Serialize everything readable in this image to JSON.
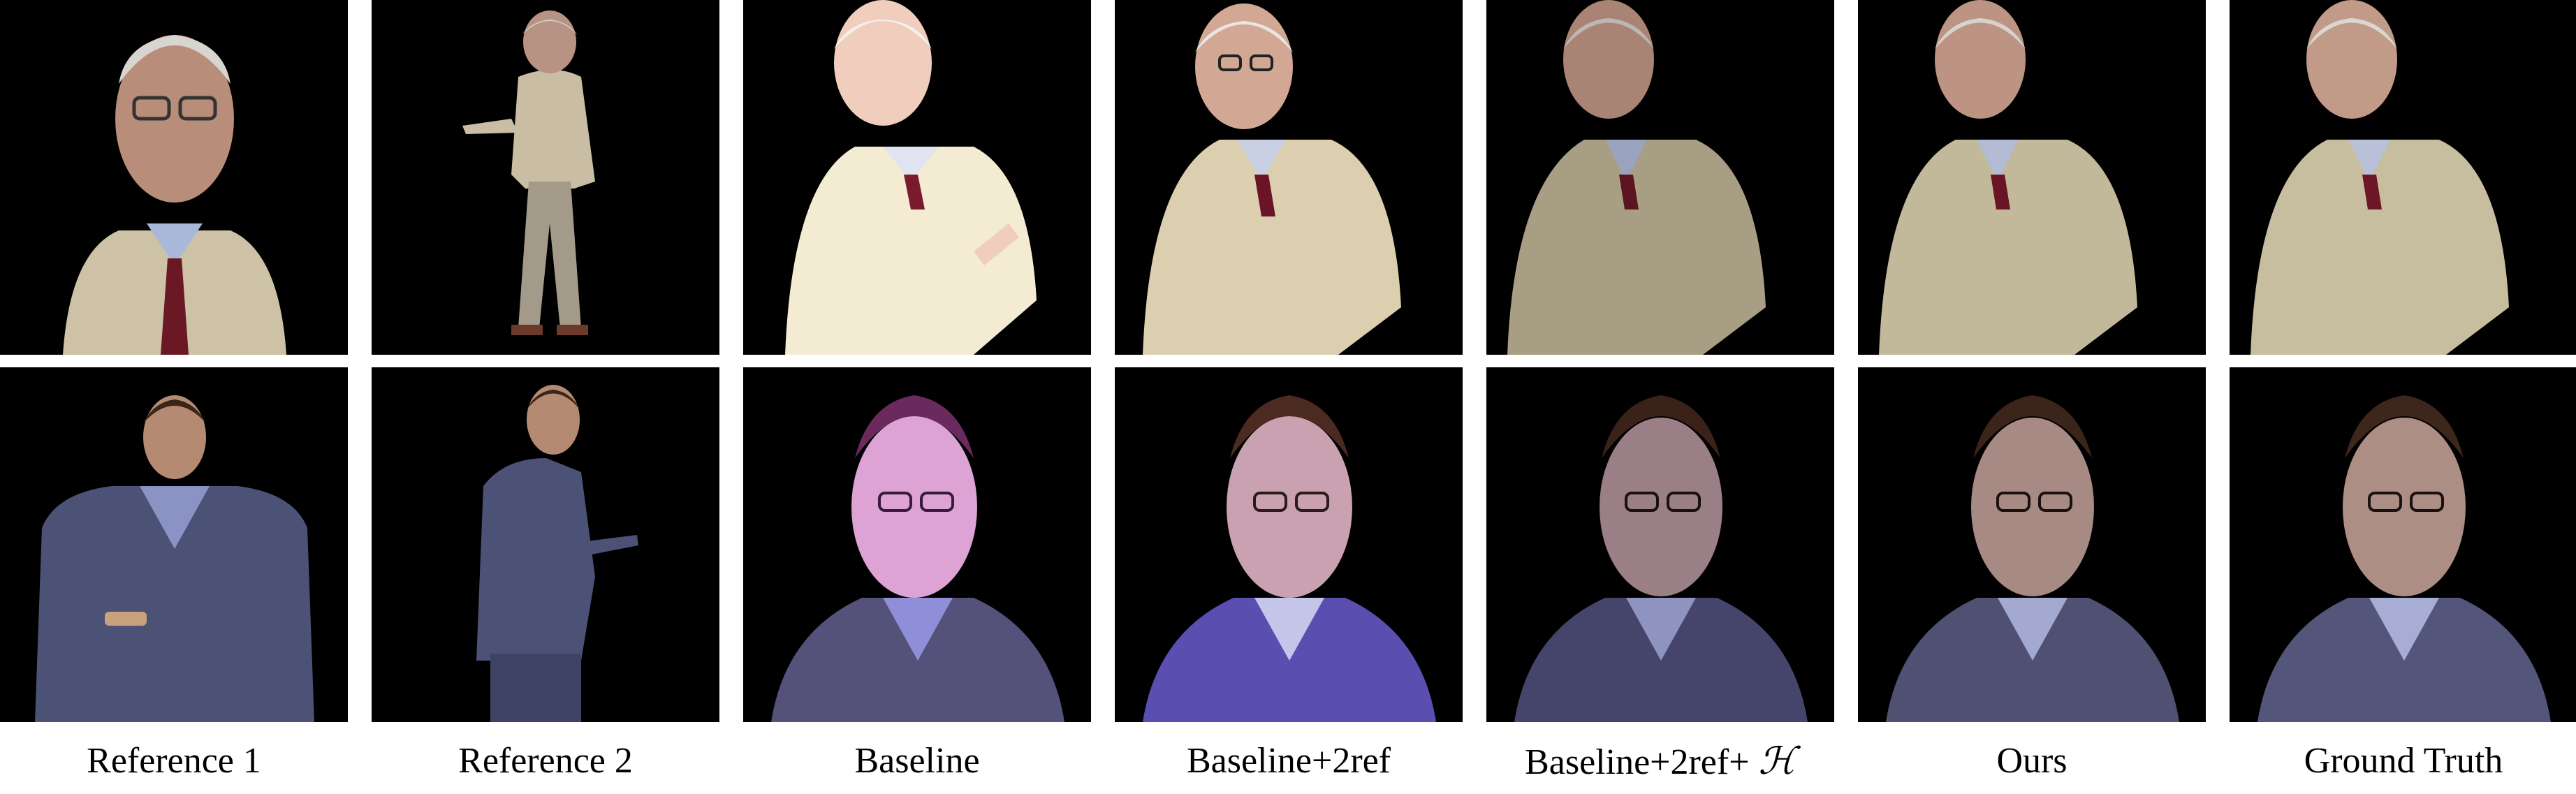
{
  "figure": {
    "columns": [
      {
        "id": "reference-1",
        "label": "Reference 1"
      },
      {
        "id": "reference-2",
        "label": "Reference 2"
      },
      {
        "id": "baseline",
        "label": "Baseline"
      },
      {
        "id": "baseline-2ref",
        "label": "Baseline+2ref"
      },
      {
        "id": "baseline-2ref-h",
        "label": "Baseline+2ref+ ",
        "symbol": "ℋ"
      },
      {
        "id": "ours",
        "label": "Ours"
      },
      {
        "id": "ground-truth",
        "label": "Ground Truth"
      }
    ],
    "rows": [
      {
        "id": "row-1",
        "subject": "elderly-man-beige-sweater"
      },
      {
        "id": "row-2",
        "subject": "man-grey-blazer"
      }
    ],
    "colors": {
      "background": "#000000",
      "sweater": "#cfc3a6",
      "tie": "#7a1a2a",
      "blazer": "#4a4f74",
      "skin": "#c9a087"
    }
  }
}
